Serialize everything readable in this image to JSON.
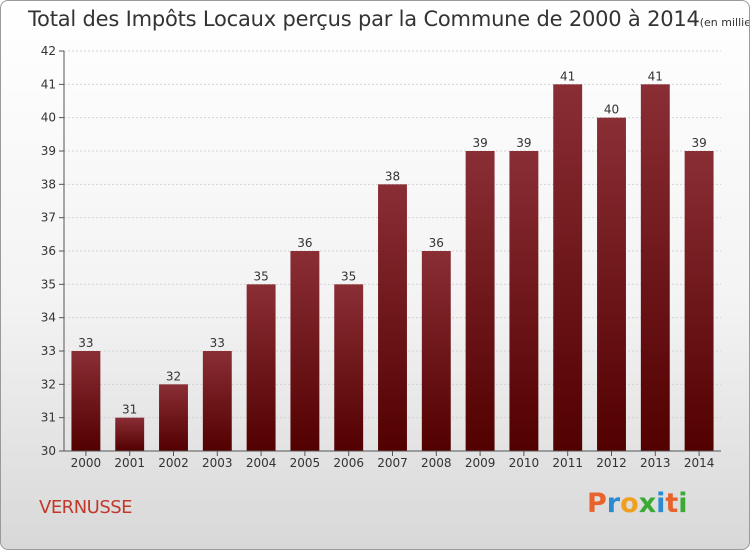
{
  "header": {
    "title": "Total des Impôts Locaux perçus par la Commune de 2000 à 2014",
    "unit": "(en milliers d'€)"
  },
  "footer": {
    "commune": "VERNUSSE",
    "logo": "Proxiti"
  },
  "colors": {
    "bar_top": "#8a2e35",
    "bar_bottom": "#520000",
    "commune": "#c0392b",
    "logo_letters": [
      "#e8632b",
      "#2a8bd0",
      "#f0a020",
      "#3aaa35",
      "#2a8bd0",
      "#e8632b",
      "#3aaa35"
    ]
  },
  "chart_data": {
    "type": "bar",
    "title": "Total des Impôts Locaux perçus par la Commune de 2000 à 2014",
    "xlabel": "",
    "ylabel": "",
    "ylim": [
      30,
      42
    ],
    "yticks": [
      30,
      31,
      32,
      33,
      34,
      35,
      36,
      37,
      38,
      39,
      40,
      41,
      42
    ],
    "categories": [
      "2000",
      "2001",
      "2002",
      "2003",
      "2004",
      "2005",
      "2006",
      "2007",
      "2008",
      "2009",
      "2010",
      "2011",
      "2012",
      "2013",
      "2014"
    ],
    "values": [
      33,
      31,
      32,
      33,
      35,
      36,
      35,
      38,
      36,
      39,
      39,
      41,
      40,
      41,
      39
    ]
  }
}
